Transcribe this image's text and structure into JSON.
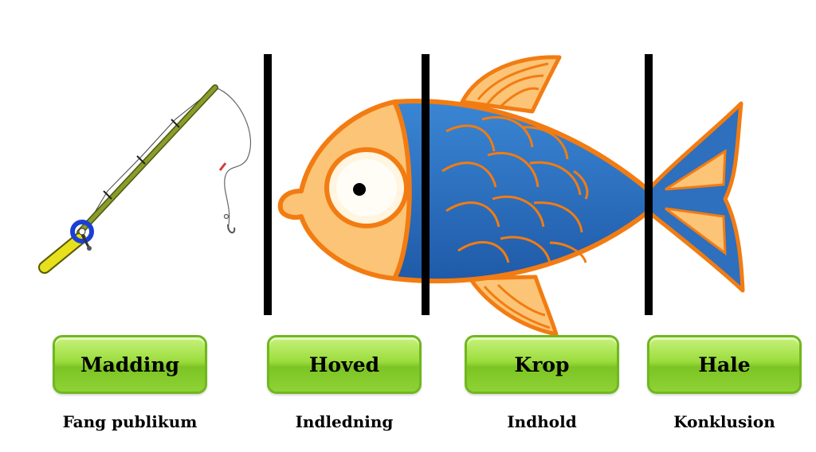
{
  "sections": [
    {
      "label": "Madding",
      "caption": "Fang publikum"
    },
    {
      "label": "Hoved",
      "caption": "Indledning"
    },
    {
      "label": "Krop",
      "caption": "Indhold"
    },
    {
      "label": "Hale",
      "caption": "Konklusion"
    }
  ],
  "colors": {
    "fish_head": "#fcc476",
    "fish_body": "#2e6fbe",
    "fish_outline": "#f27c12",
    "fish_fin": "#fcc476",
    "divider": "#000000",
    "rod": "#7e8f22",
    "rod_handle": "#e7e01c",
    "reel": "#1b3fd6",
    "button_green": "#8fd236"
  },
  "icons": [
    "fishing-rod-icon",
    "fish-icon"
  ]
}
